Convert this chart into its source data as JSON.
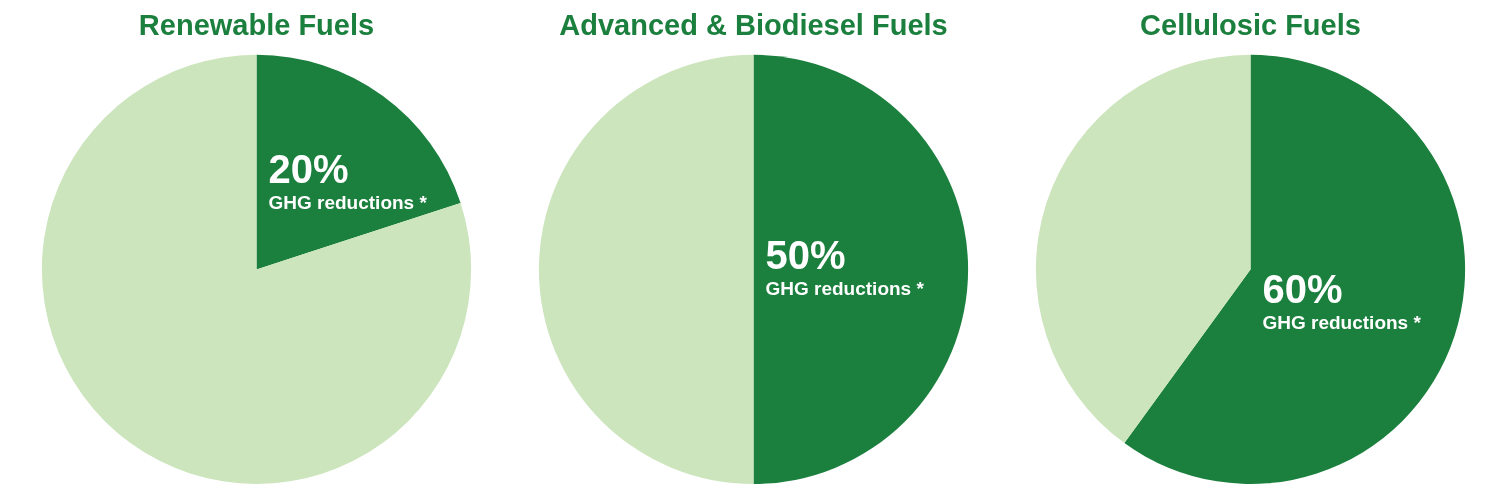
{
  "chart_data": [
    {
      "type": "pie",
      "title": "Renewable Fuels",
      "categories": [
        "GHG reductions *",
        null
      ],
      "values": [
        20,
        80
      ],
      "value_labels": [
        "20%",
        null
      ],
      "colors": [
        "#1b7f3e",
        "#cce5bd"
      ]
    },
    {
      "type": "pie",
      "title": "Advanced & Biodiesel Fuels",
      "categories": [
        "GHG reductions *",
        null
      ],
      "values": [
        50,
        50
      ],
      "value_labels": [
        "50%",
        null
      ],
      "colors": [
        "#1b7f3e",
        "#cce5bd"
      ]
    },
    {
      "type": "pie",
      "title": "Cellulosic Fuels",
      "categories": [
        "GHG reductions *",
        null
      ],
      "values": [
        60,
        40
      ],
      "value_labels": [
        "60%",
        null
      ],
      "colors": [
        "#1b7f3e",
        "#cce5bd"
      ]
    }
  ]
}
